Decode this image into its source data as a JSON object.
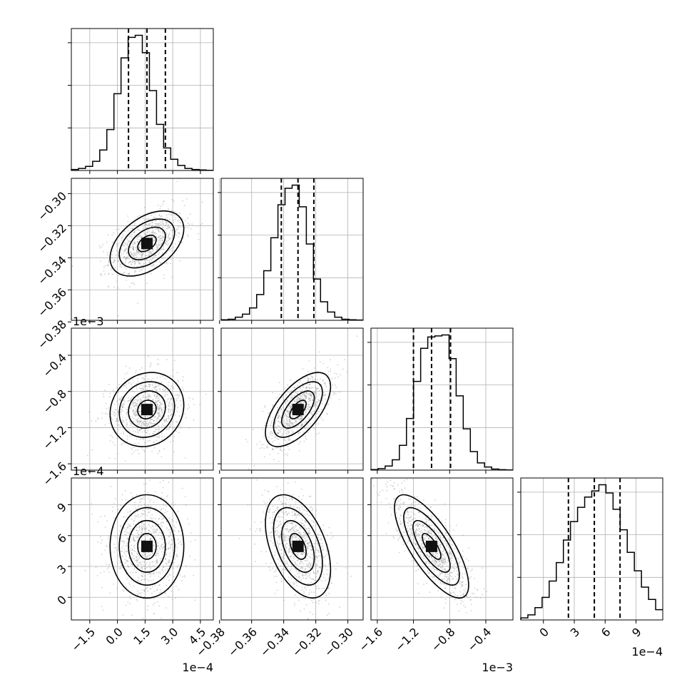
{
  "chart_data": {
    "type": "corner",
    "grid": true,
    "parameters": [
      {
        "range": [
          -0.00025,
          0.00052
        ],
        "ticks": [
          -1.5,
          0.0,
          1.5,
          3.0,
          4.5
        ],
        "tick_labels": [
          "−1.5",
          "0.0",
          "1.5",
          "3.0",
          "4.5"
        ],
        "offset_label": "1e−4",
        "scale": 0.0001,
        "quantiles": [
          6e-05,
          0.00016,
          0.00026
        ],
        "hist_bins": [
          1,
          2,
          4,
          9,
          20,
          40,
          75,
          110,
          130,
          132,
          115,
          78,
          45,
          22,
          11,
          5,
          2,
          1,
          0.5,
          0.2
        ]
      },
      {
        "range": [
          -0.379,
          -0.2905
        ],
        "ticks": [
          -0.38,
          -0.36,
          -0.34,
          -0.32,
          -0.3
        ],
        "tick_labels": [
          "−0.38",
          "−0.36",
          "−0.34",
          "−0.32",
          "−0.30"
        ],
        "offset_label": "",
        "scale": 1,
        "quantiles": [
          -0.3415,
          -0.3311,
          -0.3212
        ],
        "hist_bins": [
          0.5,
          1,
          3,
          6,
          12,
          25,
          48,
          80,
          112,
          128,
          131,
          110,
          74,
          40,
          18,
          8,
          3,
          1,
          0.5,
          0.3
        ]
      },
      {
        "range": [
          -0.00167,
          -0.0001
        ],
        "ticks": [
          -1.6,
          -1.2,
          -0.8,
          -0.4
        ],
        "tick_labels": [
          "−1.6",
          "−1.2",
          "−0.8",
          "−0.4"
        ],
        "offset_label": "1e−3",
        "scale": 0.001,
        "quantiles": [
          -0.0012,
          -0.001,
          -0.00079
        ],
        "hist_bins": [
          0.5,
          1.5,
          4,
          10,
          24,
          50,
          86,
          118,
          129,
          130,
          131,
          108,
          72,
          40,
          18,
          7,
          3,
          1,
          0.4,
          0.2
        ]
      },
      {
        "range": [
          -0.00022,
          0.00116
        ],
        "ticks": [
          0,
          3,
          6,
          9
        ],
        "tick_labels": [
          "0",
          "3",
          "6",
          "9"
        ],
        "offset_label": "1e−4",
        "scale": 0.0001,
        "quantiles": [
          0.000243,
          0.000495,
          0.000745
        ],
        "hist_bins": [
          2,
          5,
          12,
          22,
          38,
          56,
          78,
          96,
          110,
          120,
          126,
          132,
          124,
          108,
          88,
          66,
          48,
          32,
          20,
          10
        ]
      }
    ],
    "pair_correlations": [
      [
        0,
        1,
        0.45
      ],
      [
        0,
        2,
        0.12
      ],
      [
        1,
        2,
        0.62
      ],
      [
        0,
        3,
        0.0
      ],
      [
        1,
        3,
        -0.45
      ],
      [
        2,
        3,
        -0.75
      ]
    ]
  }
}
